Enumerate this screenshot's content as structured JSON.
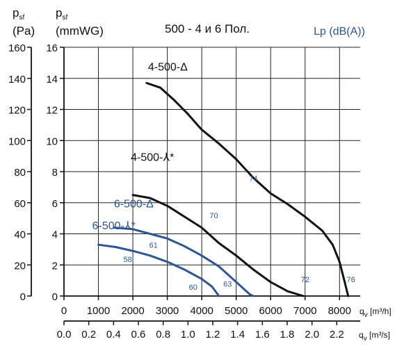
{
  "chart_data": {
    "type": "line",
    "title": "500 - 4 и 6 Пол.",
    "lp_label": "Lp (dB(A))",
    "y_axes": [
      {
        "symbol": "p",
        "subscript": "sf",
        "unit": "(Pa)",
        "ticks": [
          "0",
          "20",
          "40",
          "60",
          "80",
          "100",
          "120",
          "140",
          "160"
        ],
        "range": [
          0,
          160
        ]
      },
      {
        "symbol": "p",
        "subscript": "sf",
        "unit": "(mmWG)",
        "ticks": [
          "0",
          "2",
          "4",
          "6",
          "8",
          "10",
          "12",
          "14",
          "16"
        ],
        "range": [
          0,
          16
        ]
      }
    ],
    "x_axes": [
      {
        "symbol": "q",
        "subscript": "v",
        "unit": "[m³/h]",
        "ticks": [
          "0",
          "1000",
          "2000",
          "3000",
          "4000",
          "5000",
          "6000",
          "7000",
          "8000"
        ],
        "range": [
          0,
          8600
        ]
      },
      {
        "symbol": "q",
        "subscript": "v",
        "unit": "[m³/s]",
        "ticks": [
          "0.0",
          "0.2",
          "0.4",
          "0.6",
          "0.8",
          "1.0",
          "1.2",
          "1.4",
          "1.6",
          "1.8",
          "2.0",
          "2.2"
        ],
        "range": [
          0,
          2.389
        ]
      }
    ],
    "grid": true,
    "series": [
      {
        "name": "4-500-Δ",
        "color": "#111111",
        "points": [
          [
            2400,
            13.7
          ],
          [
            2800,
            13.4
          ],
          [
            3200,
            12.6
          ],
          [
            3600,
            11.7
          ],
          [
            4000,
            10.7
          ],
          [
            4500,
            9.8
          ],
          [
            5000,
            8.8
          ],
          [
            5500,
            7.6
          ],
          [
            6000,
            6.6
          ],
          [
            6500,
            5.9
          ],
          [
            7000,
            5.1
          ],
          [
            7500,
            4.2
          ],
          [
            7800,
            3.3
          ],
          [
            8000,
            2.2
          ],
          [
            8150,
            0.9
          ],
          [
            8250,
            0
          ]
        ],
        "labels": [
          {
            "text": "74",
            "at": [
              5500,
              7.4
            ]
          },
          {
            "text": "76",
            "at": [
              8330,
              0.9
            ]
          }
        ]
      },
      {
        "name": "4-500-⅄*",
        "color": "#111111",
        "points": [
          [
            2000,
            6.5
          ],
          [
            2500,
            6.3
          ],
          [
            3000,
            5.8
          ],
          [
            3500,
            5.1
          ],
          [
            4000,
            4.4
          ],
          [
            4500,
            3.4
          ],
          [
            5000,
            2.6
          ],
          [
            5500,
            1.7
          ],
          [
            6000,
            0.9
          ],
          [
            6500,
            0.3
          ],
          [
            6950,
            0
          ]
        ],
        "labels": [
          {
            "text": "70",
            "at": [
              4350,
              5.0
            ]
          },
          {
            "text": "72",
            "at": [
              7000,
              0.9
            ]
          }
        ]
      },
      {
        "name": "6-500-Δ",
        "color": "#2b5597",
        "points": [
          [
            1450,
            4.4
          ],
          [
            2000,
            4.3
          ],
          [
            2500,
            4.0
          ],
          [
            3000,
            3.7
          ],
          [
            3500,
            3.2
          ],
          [
            4000,
            2.6
          ],
          [
            4500,
            1.9
          ],
          [
            4800,
            1.3
          ],
          [
            5100,
            0.7
          ],
          [
            5400,
            0.1
          ],
          [
            5500,
            0
          ]
        ],
        "labels": [
          {
            "text": "61",
            "at": [
              2600,
              3.1
            ]
          },
          {
            "text": "63",
            "at": [
              4750,
              0.6
            ]
          }
        ]
      },
      {
        "name": "6-500-⅄*",
        "color": "#2b5597",
        "points": [
          [
            1000,
            3.3
          ],
          [
            1500,
            3.15
          ],
          [
            2000,
            2.9
          ],
          [
            2500,
            2.6
          ],
          [
            3000,
            2.2
          ],
          [
            3500,
            1.7
          ],
          [
            4000,
            1.1
          ],
          [
            4300,
            0.6
          ],
          [
            4500,
            0
          ]
        ],
        "labels": [
          {
            "text": "58",
            "at": [
              1850,
              2.2
            ]
          },
          {
            "text": "60",
            "at": [
              3750,
              0.4
            ]
          }
        ]
      }
    ]
  }
}
